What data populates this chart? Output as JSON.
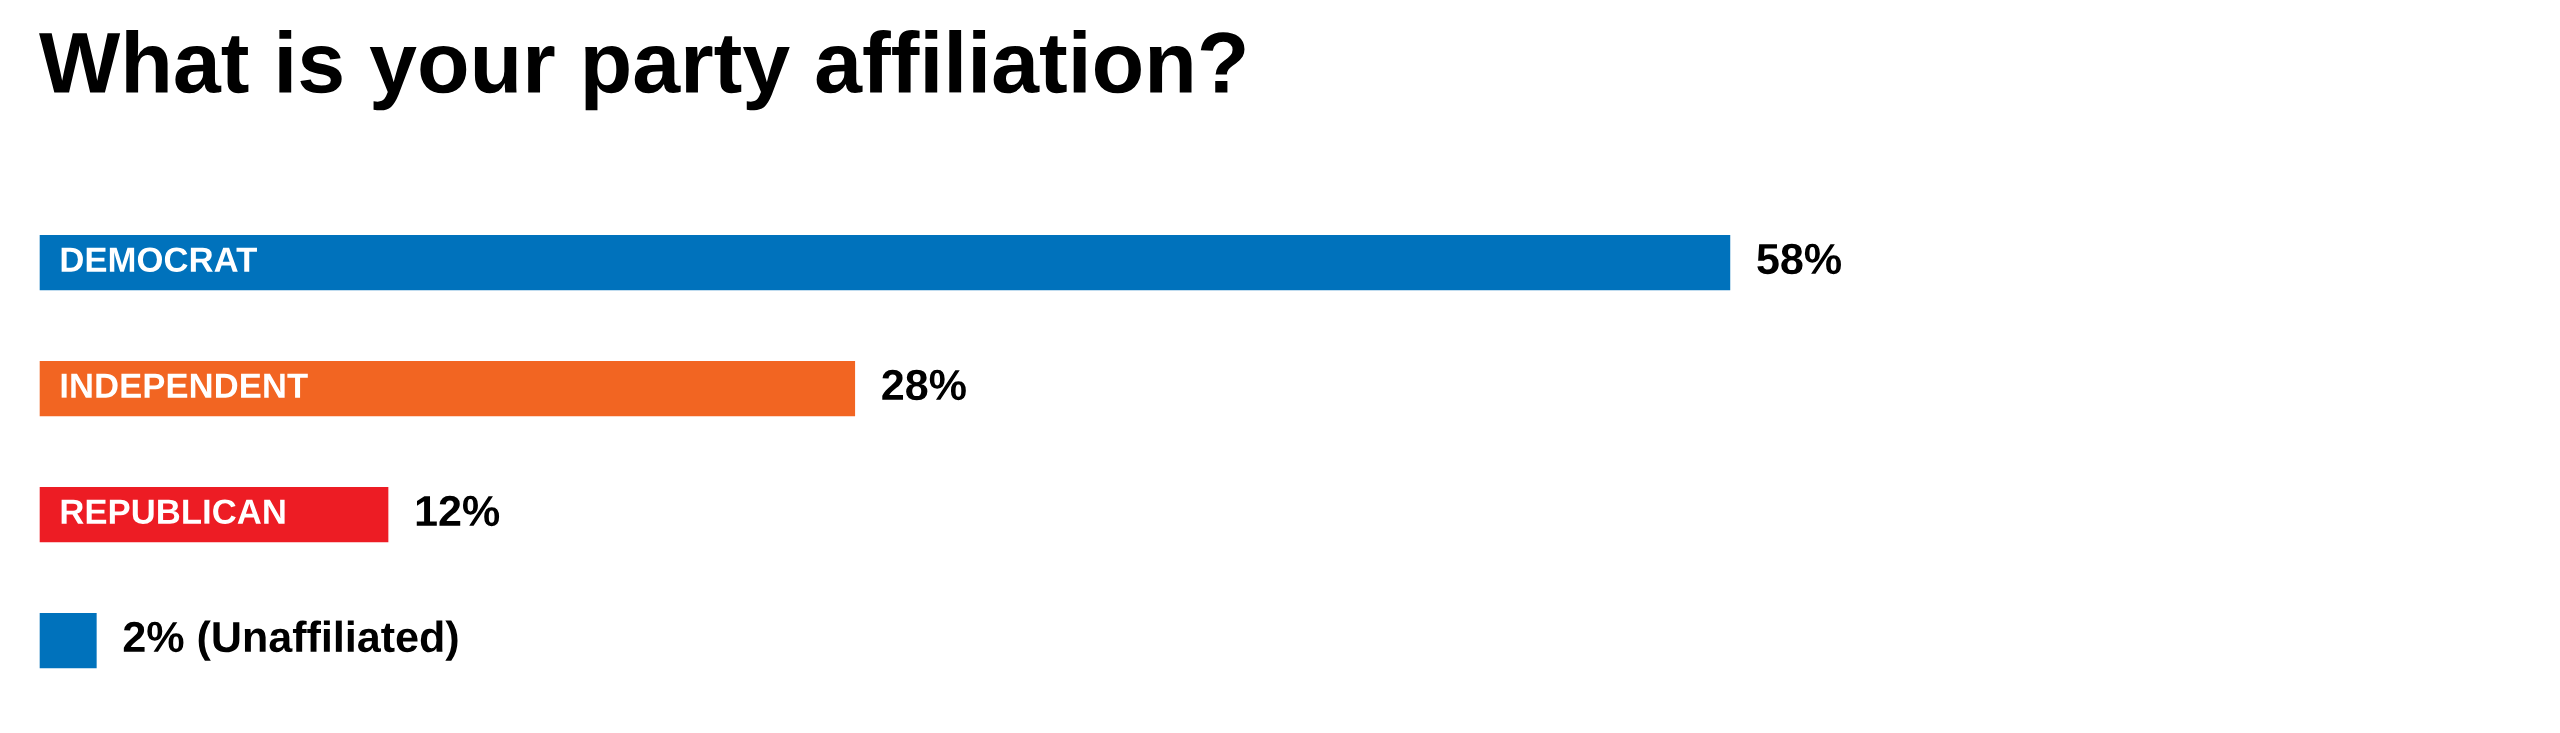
{
  "chart_data": {
    "type": "bar",
    "orientation": "horizontal",
    "title": "What is your party affiliation?",
    "categories": [
      "DEMOCRAT",
      "INDEPENDENT",
      "REPUBLICAN",
      null
    ],
    "values": [
      58,
      28,
      12,
      2
    ],
    "colors": [
      "#0072bc",
      "#f26522",
      "#ed1c24",
      "#0072bc"
    ],
    "value_labels": [
      "58%",
      "28%",
      "12%",
      "2% (Unaffiliated)"
    ]
  }
}
